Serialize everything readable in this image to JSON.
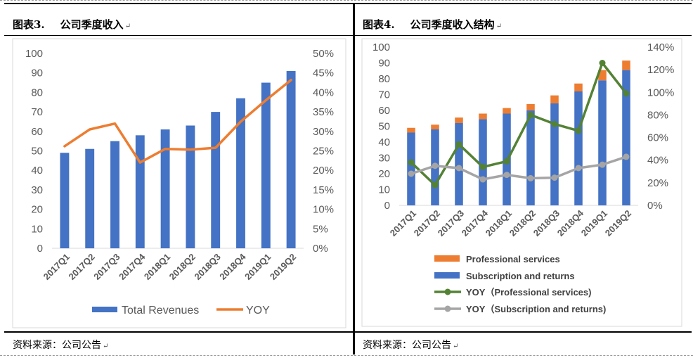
{
  "left_panel": {
    "figure_number": "图表3.",
    "figure_title": "公司季度收入",
    "source": "资料来源：公司公告"
  },
  "right_panel": {
    "figure_number": "图表4.",
    "figure_title": "公司季度收入结构",
    "source": "资料来源：公司公告"
  },
  "chart_data": [
    {
      "type": "bar",
      "title": "",
      "categories": [
        "2017Q1",
        "2017Q2",
        "2017Q3",
        "2017Q4",
        "2018Q1",
        "2018Q2",
        "2018Q3",
        "2018Q4",
        "2019Q1",
        "2019Q2"
      ],
      "series": [
        {
          "name": "Total Revenues",
          "type": "bar",
          "axis": "left",
          "color": "#4472C4",
          "values": [
            49,
            51,
            55,
            58,
            61,
            63,
            70,
            77,
            85,
            91
          ]
        },
        {
          "name": "YOY",
          "type": "line",
          "axis": "right",
          "color": "#ED7D31",
          "values": [
            0.262,
            0.305,
            0.32,
            0.22,
            0.255,
            0.253,
            0.258,
            0.325,
            0.38,
            0.432
          ]
        }
      ],
      "y_left": {
        "min": 0,
        "max": 100,
        "ticks": [
          "0",
          "10",
          "20",
          "30",
          "40",
          "50",
          "60",
          "70",
          "80",
          "90",
          "100"
        ]
      },
      "y_right": {
        "min": 0,
        "max": 0.5,
        "ticks": [
          "0%",
          "5%",
          "10%",
          "15%",
          "20%",
          "25%",
          "30%",
          "35%",
          "40%",
          "45%",
          "50%"
        ]
      },
      "legend_position": "bottom",
      "grid": false
    },
    {
      "type": "bar",
      "title": "",
      "stacked": true,
      "categories": [
        "2017Q1",
        "2017Q2",
        "2017Q3",
        "2017Q4",
        "2018Q1",
        "2018Q2",
        "2018Q3",
        "2018Q4",
        "2019Q1",
        "2019Q2"
      ],
      "series": [
        {
          "name": "Subscription and returns",
          "type": "bar",
          "axis": "left",
          "color": "#4472C4",
          "values": [
            46,
            48,
            52,
            54.5,
            58,
            60,
            64.5,
            72,
            79,
            85.5
          ]
        },
        {
          "name": "Professional services",
          "type": "bar",
          "axis": "left",
          "color": "#ED7D31",
          "values": [
            3,
            3,
            3.5,
            3.5,
            3.5,
            4,
            5,
            5,
            6.5,
            6
          ]
        },
        {
          "name": "YOY（Professional services)",
          "type": "line",
          "axis": "right",
          "color": "#548235",
          "values": [
            0.38,
            0.18,
            0.54,
            0.34,
            0.39,
            0.8,
            0.72,
            0.66,
            1.26,
            0.99
          ]
        },
        {
          "name": "YOY（Subscription and returns)",
          "type": "line",
          "axis": "right",
          "color": "#A5A5A5",
          "values": [
            0.28,
            0.35,
            0.33,
            0.23,
            0.27,
            0.24,
            0.245,
            0.33,
            0.36,
            0.43
          ]
        }
      ],
      "y_left": {
        "min": 0,
        "max": 100,
        "ticks": [
          "0",
          "10",
          "20",
          "30",
          "40",
          "50",
          "60",
          "70",
          "80",
          "90",
          "100"
        ]
      },
      "y_right": {
        "min": 0,
        "max": 1.4,
        "ticks": [
          "0%",
          "20%",
          "40%",
          "60%",
          "80%",
          "100%",
          "120%",
          "140%"
        ]
      },
      "legend_position": "bottom",
      "grid": false
    }
  ]
}
